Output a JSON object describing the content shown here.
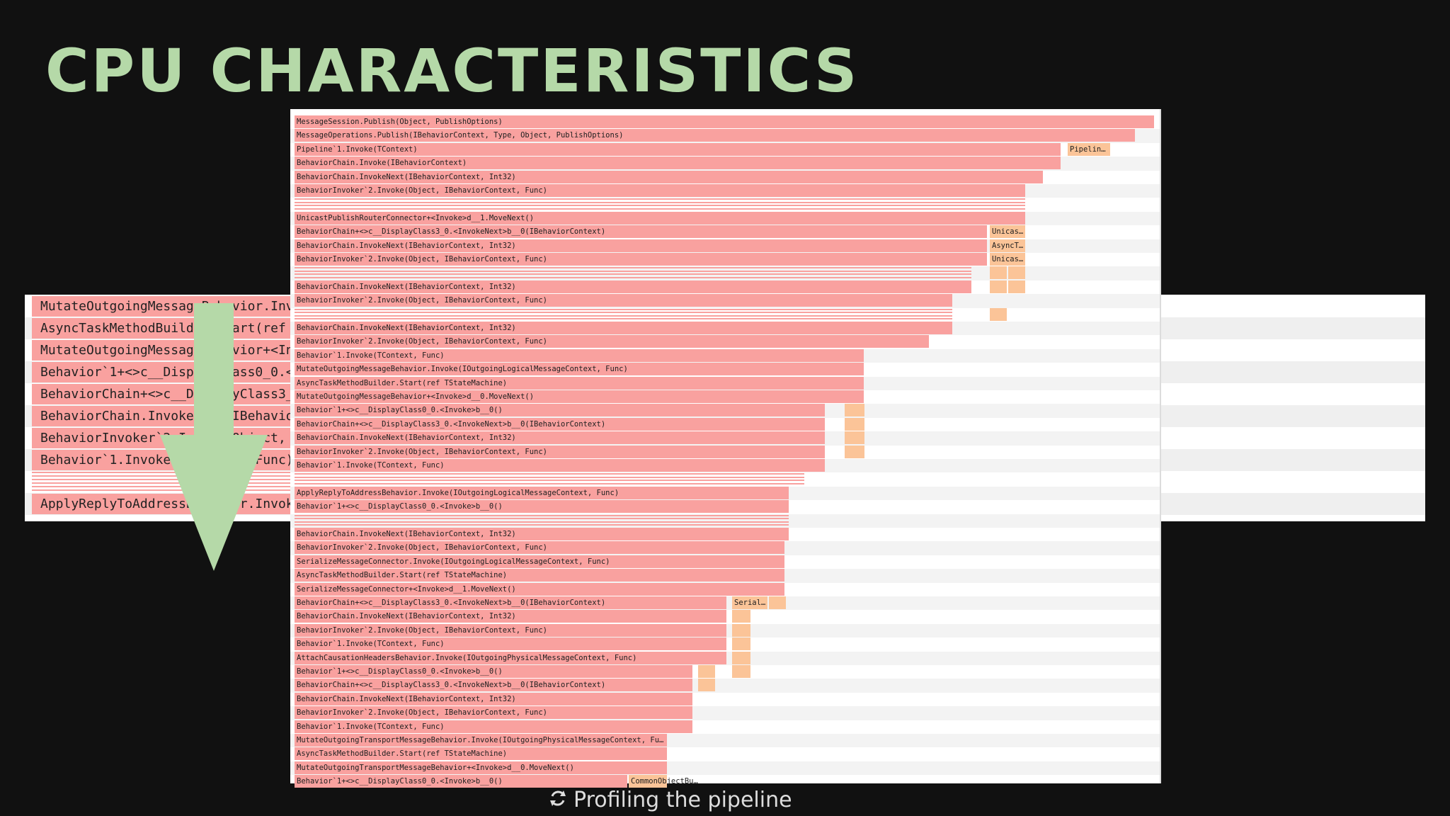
{
  "slide": {
    "title": "CPU CHARACTERISTICS",
    "caption": "Profiling the pipeline",
    "caption_icon": "refresh-icon"
  },
  "colors": {
    "background": "#111111",
    "title": "#b5d9a8",
    "frame": "#f9a19f",
    "frame_secondary": "#fbc498",
    "arrow": "#b5d9a8"
  },
  "zoom_panel": {
    "frames": [
      "MutateOutgoingMessageBehavior.Invok",
      "AsyncTaskMethodBuilder.Start(ref TS",
      "MutateOutgoingMessageBehavior+<Invo",
      "Behavior`1+<>c__DisplayClass0_0.<In",
      "BehaviorChain+<>c__DisplayClass3_0.",
      "BehaviorChain.InvokeNext(IBehaviorC",
      "BehaviorInvoker`2.Invoke(Object, IB",
      "Behavior`1.Invoke(TContext, Func)",
      "",
      "ApplyReplyToAddressBehavior.Invoke("
    ]
  },
  "flamegraph": {
    "frames": [
      "MessageSession.Publish(Object, PublishOptions)",
      "MessageOperations.Publish(IBehaviorContext, Type, Object, PublishOptions)",
      "Pipeline`1.Invoke(TContext)",
      "BehaviorChain.Invoke(IBehaviorContext)",
      "BehaviorChain.InvokeNext(IBehaviorContext, Int32)",
      "BehaviorInvoker`2.Invoke(Object, IBehaviorContext, Func)",
      "",
      "UnicastPublishRouterConnector+<Invoke>d__1.MoveNext()",
      "BehaviorChain+<>c__DisplayClass3_0.<InvokeNext>b__0(IBehaviorContext)",
      "BehaviorChain.InvokeNext(IBehaviorContext, Int32)",
      "BehaviorInvoker`2.Invoke(Object, IBehaviorContext, Func)",
      "",
      "BehaviorChain.InvokeNext(IBehaviorContext, Int32)",
      "BehaviorInvoker`2.Invoke(Object, IBehaviorContext, Func)",
      "",
      "BehaviorChain.InvokeNext(IBehaviorContext, Int32)",
      "BehaviorInvoker`2.Invoke(Object, IBehaviorContext, Func)",
      "Behavior`1.Invoke(TContext, Func)",
      "MutateOutgoingMessageBehavior.Invoke(IOutgoingLogicalMessageContext, Func)",
      "AsyncTaskMethodBuilder.Start(ref TStateMachine)",
      "MutateOutgoingMessageBehavior+<Invoke>d__0.MoveNext()",
      "Behavior`1+<>c__DisplayClass0_0.<Invoke>b__0()",
      "BehaviorChain+<>c__DisplayClass3_0.<InvokeNext>b__0(IBehaviorContext)",
      "BehaviorChain.InvokeNext(IBehaviorContext, Int32)",
      "BehaviorInvoker`2.Invoke(Object, IBehaviorContext, Func)",
      "Behavior`1.Invoke(TContext, Func)",
      "",
      "ApplyReplyToAddressBehavior.Invoke(IOutgoingLogicalMessageContext, Func)",
      "Behavior`1+<>c__DisplayClass0_0.<Invoke>b__0()",
      "",
      "BehaviorChain.InvokeNext(IBehaviorContext, Int32)",
      "BehaviorInvoker`2.Invoke(Object, IBehaviorContext, Func)",
      "SerializeMessageConnector.Invoke(IOutgoingLogicalMessageContext, Func)",
      "AsyncTaskMethodBuilder.Start(ref TStateMachine)",
      "SerializeMessageConnector+<Invoke>d__1.MoveNext()",
      "BehaviorChain+<>c__DisplayClass3_0.<InvokeNext>b__0(IBehaviorContext)",
      "BehaviorChain.InvokeNext(IBehaviorContext, Int32)",
      "BehaviorInvoker`2.Invoke(Object, IBehaviorContext, Func)",
      "Behavior`1.Invoke(TContext, Func)",
      "AttachCausationHeadersBehavior.Invoke(IOutgoingPhysicalMessageContext, Func)",
      "Behavior`1+<>c__DisplayClass0_0.<Invoke>b__0()",
      "BehaviorChain+<>c__DisplayClass3_0.<InvokeNext>b__0(IBehaviorContext)",
      "BehaviorChain.InvokeNext(IBehaviorContext, Int32)",
      "BehaviorInvoker`2.Invoke(Object, IBehaviorContext, Func)",
      "Behavior`1.Invoke(TContext, Func)",
      "MutateOutgoingTransportMessageBehavior.Invoke(IOutgoingPhysicalMessageContext, Fu…",
      "AsyncTaskMethodBuilder.Start(ref TStateMachine)",
      "MutateOutgoingTransportMessageBehavior+<Invoke>d__0.MoveNext()",
      "Behavior`1+<>c__DisplayClass0_0.<Invoke>b__0()"
    ],
    "side_frames": {
      "pipeline": "Pipelin…",
      "unicast_1": "Unicas…",
      "asynct": "AsyncT…",
      "unicast_2": "Unicas…",
      "serial": "Serial…",
      "common": "CommonObjectBu…"
    }
  }
}
